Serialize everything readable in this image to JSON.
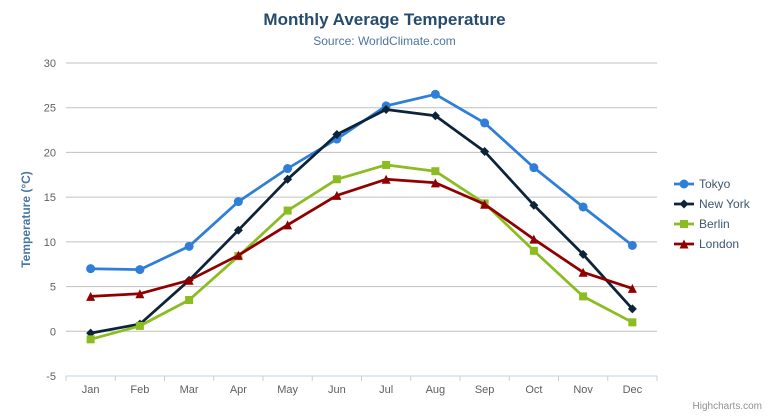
{
  "chart_data": {
    "type": "line",
    "title": "Monthly Average Temperature",
    "subtitle": "Source: WorldClimate.com",
    "categories": [
      "Jan",
      "Feb",
      "Mar",
      "Apr",
      "May",
      "Jun",
      "Jul",
      "Aug",
      "Sep",
      "Oct",
      "Nov",
      "Dec"
    ],
    "xlabel": "",
    "ylabel": "Temperature (°C)",
    "ylim": [
      -5,
      30
    ],
    "ytick_step": 5,
    "grid": true,
    "legend_position": "right",
    "series": [
      {
        "name": "Tokyo",
        "marker": "circle",
        "color": "#2f7ed8",
        "values": [
          7.0,
          6.9,
          9.5,
          14.5,
          18.2,
          21.5,
          25.2,
          26.5,
          23.3,
          18.3,
          13.9,
          9.6
        ]
      },
      {
        "name": "New York",
        "marker": "diamond",
        "color": "#0d233a",
        "values": [
          -0.2,
          0.8,
          5.7,
          11.3,
          17.0,
          22.0,
          24.8,
          24.1,
          20.1,
          14.1,
          8.6,
          2.5
        ]
      },
      {
        "name": "Berlin",
        "marker": "square",
        "color": "#8bbc21",
        "values": [
          -0.9,
          0.6,
          3.5,
          8.4,
          13.5,
          17.0,
          18.6,
          17.9,
          14.3,
          9.0,
          3.9,
          1.0
        ]
      },
      {
        "name": "London",
        "marker": "triangle",
        "color": "#910000",
        "values": [
          3.9,
          4.2,
          5.7,
          8.5,
          11.9,
          15.2,
          17.0,
          16.6,
          14.2,
          10.3,
          6.6,
          4.8
        ]
      }
    ]
  },
  "colors": {
    "title": "#274b6d",
    "subtitle": "#4d759e",
    "axis_label": "#606060",
    "axis_title": "#4977a4",
    "grid_line": "#c0c0c0",
    "axis_line": "#c0d0e0",
    "legend_text": "#3e576f",
    "credits": "#909090",
    "menu_icon": "#666666"
  },
  "credits": {
    "label": "Highcharts.com"
  }
}
